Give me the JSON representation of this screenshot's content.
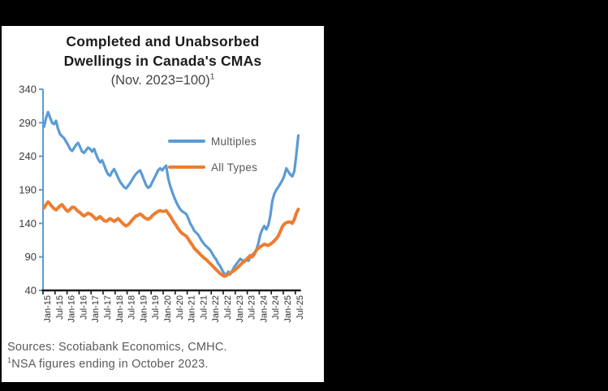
{
  "window": {
    "background": "#000000",
    "panel_background": "#ffffff"
  },
  "chart": {
    "title": {
      "line1": "Completed and Unabsorbed",
      "line2": "Dwellings in Canada's CMAs",
      "line3": "(Nov. 2023=100)",
      "superscript": "1"
    },
    "source": {
      "line1": "Sources: Scotiabank Economics, CMHC.",
      "footnote_superscript": "1",
      "line2": "NSA figures ending in October 2023."
    }
  },
  "chart_data": {
    "type": "line",
    "title": "Completed and Unabsorbed Dwellings in Canada's CMAs (Nov. 2023=100)",
    "frequency": "monthly",
    "x_start": "Jan-2015",
    "x_end": "Aug-2025",
    "x_tick_labels": [
      "Jan-15",
      "Jul-15",
      "Jan-16",
      "Jul-16",
      "Jan-17",
      "Jul-17",
      "Jan-18",
      "Jul-18",
      "Jan-19",
      "Jul-19",
      "Jan-20",
      "Jul-20",
      "Jan-21",
      "Jul-21",
      "Jan-22",
      "Jul-22",
      "Jan-23",
      "Jul-23",
      "Jan-24",
      "Jul-24",
      "Jan-25",
      "Jul-25"
    ],
    "y_ticks": [
      340,
      290,
      240,
      190,
      140,
      90,
      40
    ],
    "ylim": [
      40,
      340
    ],
    "grid": false,
    "legend_position": "inside-top-right",
    "axis_colors": {
      "y_axis": "#5B9BD5",
      "x_axis": "#1a1a1a"
    },
    "series": [
      {
        "name": "Multiples",
        "color": "#5B9BD5",
        "values": [
          284,
          297,
          306,
          298,
          290,
          288,
          293,
          281,
          273,
          270,
          267,
          262,
          257,
          251,
          248,
          252,
          257,
          260,
          254,
          247,
          245,
          249,
          253,
          251,
          247,
          251,
          243,
          236,
          231,
          234,
          227,
          219,
          213,
          211,
          217,
          221,
          215,
          208,
          202,
          198,
          194,
          192,
          196,
          200,
          205,
          210,
          214,
          217,
          219,
          212,
          204,
          197,
          193,
          195,
          201,
          207,
          213,
          219,
          222,
          219,
          223,
          226,
          207,
          196,
          187,
          179,
          172,
          166,
          161,
          158,
          156,
          154,
          148,
          140,
          135,
          129,
          126,
          123,
          118,
          113,
          109,
          106,
          103,
          100,
          95,
          90,
          86,
          80,
          76,
          70,
          65,
          63,
          68,
          64,
          69,
          75,
          79,
          83,
          87,
          85,
          82,
          86,
          84,
          89,
          93,
          96,
          100,
          110,
          123,
          131,
          136,
          131,
          137,
          151,
          173,
          184,
          190,
          194,
          199,
          204,
          211,
          222,
          217,
          213,
          210,
          218,
          242,
          271
        ]
      },
      {
        "name": "All Types",
        "color": "#ED7D31",
        "values": [
          163,
          168,
          172,
          169,
          165,
          162,
          160,
          163,
          166,
          168,
          164,
          160,
          158,
          161,
          164,
          164,
          161,
          158,
          156,
          153,
          151,
          153,
          155,
          154,
          152,
          149,
          146,
          148,
          150,
          147,
          144,
          143,
          145,
          147,
          145,
          143,
          145,
          147,
          144,
          141,
          138,
          136,
          138,
          141,
          145,
          148,
          151,
          152,
          154,
          152,
          149,
          147,
          146,
          148,
          151,
          154,
          156,
          158,
          159,
          158,
          158,
          159,
          155,
          151,
          146,
          141,
          137,
          132,
          128,
          125,
          123,
          121,
          117,
          112,
          108,
          103,
          100,
          97,
          94,
          91,
          88,
          86,
          83,
          80,
          77,
          74,
          71,
          68,
          65,
          63,
          61,
          62,
          64,
          66,
          68,
          70,
          72,
          75,
          78,
          81,
          84,
          86,
          89,
          92,
          90,
          94,
          100,
          103,
          105,
          107,
          109,
          108,
          107,
          109,
          111,
          114,
          117,
          121,
          128,
          135,
          139,
          141,
          142,
          142,
          140,
          146,
          155,
          161
        ]
      }
    ]
  }
}
